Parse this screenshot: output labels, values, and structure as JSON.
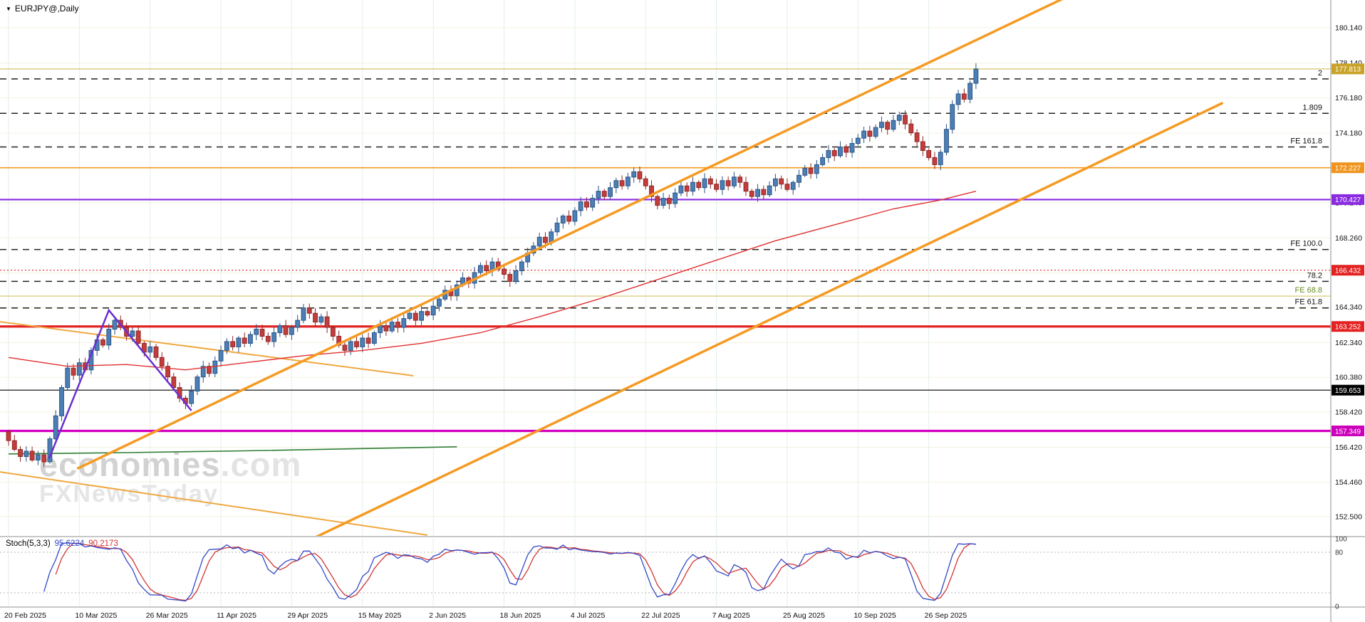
{
  "window": {
    "symbol_label": "EURJPY@,Daily"
  },
  "watermark": {
    "name": "economies",
    "tld": ".com",
    "line2": "FXNewsToday"
  },
  "chart_data": {
    "type": "candlestick",
    "title": "EURJPY@ Daily",
    "ylim": [
      152.0,
      181.0
    ],
    "grid": true,
    "y_axis_ticks": [
      "180.140",
      "178.140",
      "176.180",
      "174.180",
      "172.220",
      "170.240",
      "168.260",
      "166.280",
      "164.340",
      "162.340",
      "160.380",
      "158.420",
      "156.420",
      "154.460",
      "152.500"
    ],
    "x_axis_labels": [
      {
        "day": 0,
        "text": "20 Feb 2025"
      },
      {
        "day": 12,
        "text": "10 Mar 2025"
      },
      {
        "day": 24,
        "text": "26 Mar 2025"
      },
      {
        "day": 36,
        "text": "11 Apr 2025"
      },
      {
        "day": 48,
        "text": "29 Apr 2025"
      },
      {
        "day": 60,
        "text": "15 May 2025"
      },
      {
        "day": 72,
        "text": "2 Jun 2025"
      },
      {
        "day": 84,
        "text": "18 Jun 2025"
      },
      {
        "day": 96,
        "text": "4 Jul 2025"
      },
      {
        "day": 108,
        "text": "22 Jul 2025"
      },
      {
        "day": 120,
        "text": "7 Aug 2025"
      },
      {
        "day": 132,
        "text": "25 Aug 2025"
      },
      {
        "day": 144,
        "text": "10 Sep 2025"
      },
      {
        "day": 156,
        "text": "26 Sep 2025"
      }
    ],
    "candles": {
      "first_open": 157.3,
      "closes": [
        156.8,
        156.3,
        155.9,
        156.2,
        155.7,
        156.0,
        155.6,
        156.9,
        158.2,
        159.8,
        160.9,
        160.5,
        161.2,
        160.8,
        161.9,
        162.5,
        162.2,
        163.1,
        163.6,
        163.2,
        162.7,
        163.0,
        162.3,
        161.8,
        162.1,
        161.5,
        161.0,
        160.4,
        159.8,
        159.2,
        158.9,
        159.6,
        160.4,
        161.0,
        160.6,
        161.3,
        161.9,
        162.4,
        162.1,
        162.6,
        162.3,
        162.8,
        163.1,
        162.7,
        162.4,
        162.9,
        163.3,
        162.8,
        163.2,
        163.6,
        164.3,
        164.0,
        163.5,
        163.8,
        163.2,
        162.7,
        162.2,
        161.9,
        162.4,
        162.1,
        162.6,
        162.3,
        162.9,
        163.3,
        163.0,
        163.5,
        163.2,
        163.7,
        164.0,
        163.6,
        164.1,
        163.9,
        164.4,
        164.8,
        165.3,
        165.0,
        165.6,
        166.0,
        165.7,
        166.3,
        166.7,
        166.4,
        166.9,
        166.5,
        166.2,
        165.8,
        166.4,
        166.9,
        167.4,
        167.8,
        168.3,
        168.0,
        168.6,
        169.1,
        169.5,
        169.2,
        169.8,
        170.3,
        170.0,
        170.5,
        170.9,
        170.6,
        171.1,
        171.5,
        171.2,
        171.7,
        172.0,
        171.6,
        171.2,
        170.6,
        170.1,
        170.5,
        170.2,
        170.8,
        171.2,
        170.9,
        171.4,
        171.1,
        171.6,
        171.3,
        171.0,
        171.5,
        171.2,
        171.7,
        171.4,
        170.9,
        170.6,
        171.0,
        170.7,
        171.2,
        171.6,
        171.3,
        171.0,
        171.4,
        171.8,
        172.2,
        171.9,
        172.4,
        172.8,
        173.2,
        172.9,
        173.4,
        173.1,
        173.6,
        173.9,
        174.3,
        174.0,
        174.5,
        174.8,
        174.4,
        174.9,
        175.2,
        174.7,
        174.2,
        173.7,
        173.2,
        172.8,
        172.4,
        173.1,
        174.4,
        175.8,
        176.4,
        176.1,
        177.0,
        177.81
      ]
    },
    "levels": [
      {
        "price": 177.813,
        "style": "solid",
        "width": 1.2,
        "color": "#d9c36a",
        "badge": "177.813",
        "badge_color": "#c9a227"
      },
      {
        "price": 177.25,
        "style": "dashed",
        "width": 1.5,
        "color": "#222222",
        "label": "2",
        "label_color": "#111111"
      },
      {
        "price": 175.3,
        "style": "dashed",
        "width": 1.5,
        "color": "#222222",
        "label": "1.809",
        "label_color": "#111111"
      },
      {
        "price": 173.4,
        "style": "dashed",
        "width": 1.5,
        "color": "#222222",
        "label": "FE 161.8",
        "label_color": "#111111"
      },
      {
        "price": 172.227,
        "style": "solid",
        "width": 1.6,
        "color": "#f59a23",
        "badge": "172.227",
        "badge_color": "#f0941e"
      },
      {
        "price": 170.427,
        "style": "solid",
        "width": 2.2,
        "color": "#8a2be2",
        "badge": "170.427",
        "badge_color": "#8a2be2"
      },
      {
        "price": 167.6,
        "style": "dashed",
        "width": 1.5,
        "color": "#222222",
        "label": "FE 100.0",
        "label_color": "#111111"
      },
      {
        "price": 166.432,
        "style": "dotted",
        "width": 1.2,
        "color": "#e32222",
        "badge": "166.432",
        "badge_color": "#e32222"
      },
      {
        "price": 165.8,
        "style": "dashed",
        "width": 1.5,
        "color": "#222222",
        "label": "78.2",
        "label_color": "#111111"
      },
      {
        "price": 164.97,
        "style": "solid",
        "width": 1.2,
        "color": "#d9c36a",
        "label": "FE 68.8",
        "label_color": "#6b8e23"
      },
      {
        "price": 164.3,
        "style": "dashed",
        "width": 1.5,
        "color": "#222222",
        "label": "FE 61.8",
        "label_color": "#111111"
      },
      {
        "price": 163.252,
        "style": "solid",
        "width": 3.2,
        "color": "#e32222",
        "badge": "163.252",
        "badge_color": "#e32222"
      },
      {
        "price": 159.653,
        "style": "solid",
        "width": 1.2,
        "color": "#000000",
        "badge": "159.653",
        "badge_color": "#000000"
      },
      {
        "price": 157.349,
        "style": "solid",
        "width": 3.2,
        "color": "#d400c0",
        "badge": "157.349",
        "badge_color": "#cc00bb"
      }
    ],
    "trendlines": [
      {
        "name": "ascending-channel-upper",
        "points": [
          [
            11.8,
            155.24
          ],
          [
            181.3,
            182.19
          ]
        ],
        "color": "#f59a23",
        "width": 3.5
      },
      {
        "name": "ascending-channel-lower",
        "points": [
          [
            51.8,
            151.3
          ],
          [
            205.7,
            175.87
          ]
        ],
        "color": "#f59a23",
        "width": 3.5
      },
      {
        "name": "descending-line-upper",
        "points": [
          [
            -1.5,
            163.52
          ],
          [
            68.6,
            160.47
          ]
        ],
        "color": "#f0a840",
        "width": 2
      },
      {
        "name": "descending-line-lower",
        "points": [
          [
            -1.5,
            155.03
          ],
          [
            71.0,
            151.46
          ]
        ],
        "color": "#f0a840",
        "width": 2
      }
    ],
    "zigzag": {
      "points": [
        [
          6.9,
          155.8
        ],
        [
          17,
          164.17
        ],
        [
          31,
          158.5
        ]
      ],
      "color": "#6a2fd0",
      "width": 2.5
    },
    "ma_red": {
      "color": "#e03030",
      "width": 1.4,
      "points": [
        [
          0,
          161.5
        ],
        [
          10,
          161.0
        ],
        [
          20,
          161.1
        ],
        [
          30,
          160.8
        ],
        [
          40,
          161.2
        ],
        [
          50,
          161.6
        ],
        [
          60,
          161.9
        ],
        [
          70,
          162.3
        ],
        [
          80,
          162.9
        ],
        [
          90,
          163.8
        ],
        [
          100,
          164.8
        ],
        [
          110,
          165.9
        ],
        [
          120,
          167.0
        ],
        [
          130,
          168.1
        ],
        [
          140,
          169.0
        ],
        [
          150,
          169.9
        ],
        [
          158,
          170.4
        ],
        [
          164,
          170.9
        ]
      ]
    },
    "ma_green": {
      "color": "#2e7d32",
      "width": 1.6,
      "points": [
        [
          0,
          156.05
        ],
        [
          20,
          156.12
        ],
        [
          40,
          156.22
        ],
        [
          60,
          156.35
        ],
        [
          76,
          156.45
        ]
      ]
    },
    "stoch": {
      "label": "Stoch(5,3,3)",
      "k_value": "95.6224",
      "d_value": "90.2173",
      "params": [
        5,
        3,
        3
      ],
      "guide_levels": [
        80,
        20
      ],
      "axis_labels": [
        {
          "v": 100,
          "text": "100"
        },
        {
          "v": 80,
          "text": "80"
        },
        {
          "v": 0,
          "text": "0"
        }
      ],
      "k_color": "#3348c8",
      "d_color": "#d23535"
    },
    "colors": {
      "up": "#4c7fb5",
      "up_border": "#2b5486",
      "down": "#c43c3c",
      "down_border": "#8f2727",
      "grid_v": "#e2efe9",
      "grid_h": "#f3f1e2",
      "axis_line": "#8f8f8f",
      "axis_text": "#111111"
    }
  }
}
